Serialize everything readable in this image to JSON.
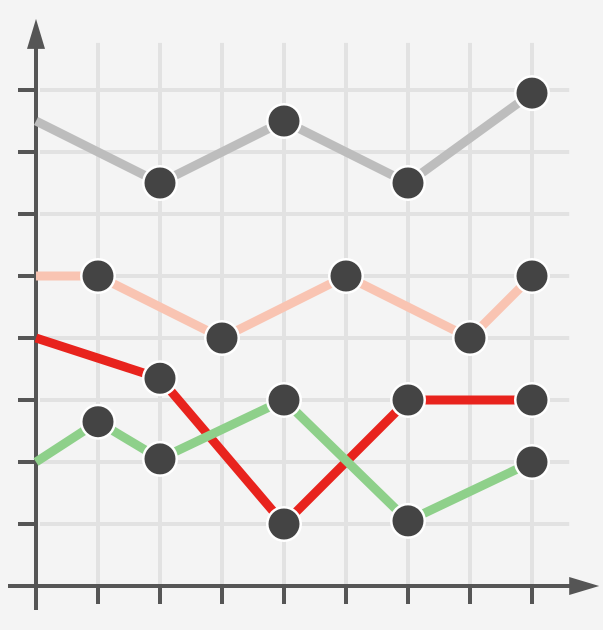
{
  "chart_data": {
    "type": "line",
    "title": "",
    "xlabel": "",
    "ylabel": "",
    "x": [
      0,
      1,
      2,
      3,
      4,
      5,
      6,
      7,
      8
    ],
    "xlim": [
      -0.02,
      8.6
    ],
    "ylim": [
      0,
      9.05
    ],
    "grid": true,
    "legend": "none",
    "marker_color": "#444444",
    "axis_color": "#555555",
    "grid_color": "#e2e2e2",
    "series": [
      {
        "color": "#bdbdbd",
        "points": [
          [
            0,
            7.5
          ],
          [
            2,
            6.5
          ],
          [
            4,
            7.5
          ],
          [
            6,
            6.5
          ],
          [
            8,
            7.95
          ]
        ],
        "markers": [
          false,
          true,
          true,
          true,
          true
        ]
      },
      {
        "color": "#f9c4b2",
        "points": [
          [
            0,
            5
          ],
          [
            1,
            5
          ],
          [
            3,
            4
          ],
          [
            5,
            5
          ],
          [
            7,
            4
          ],
          [
            8,
            5
          ]
        ],
        "markers": [
          false,
          true,
          true,
          true,
          true,
          true
        ]
      },
      {
        "color": "#e8231d",
        "points": [
          [
            0,
            4
          ],
          [
            2,
            3.35
          ],
          [
            4,
            1
          ],
          [
            6,
            3
          ],
          [
            8,
            3
          ]
        ],
        "markers": [
          false,
          true,
          true,
          true,
          true
        ]
      },
      {
        "color": "#8ed08a",
        "points": [
          [
            0,
            2
          ],
          [
            1,
            2.65
          ],
          [
            2,
            2.05
          ],
          [
            4,
            3
          ],
          [
            6,
            1.05
          ],
          [
            8,
            2
          ]
        ],
        "markers": [
          false,
          true,
          true,
          true,
          true,
          true
        ]
      }
    ]
  }
}
